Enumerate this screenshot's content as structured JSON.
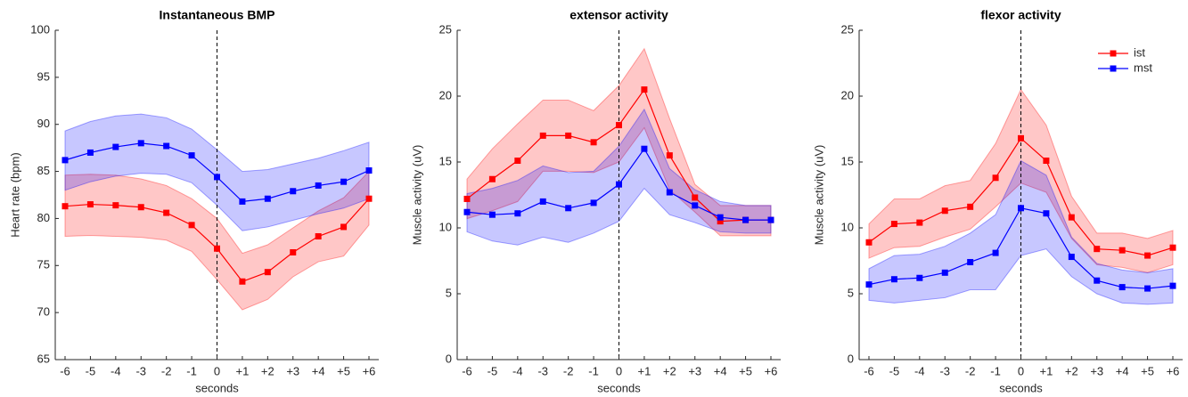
{
  "chart_data": [
    {
      "type": "line",
      "title": "Instantaneous BMP",
      "xlabel": "seconds",
      "ylabel": "Heart rate (bpm)",
      "categories": [
        "-6",
        "-5",
        "-4",
        "-3",
        "-2",
        "-1",
        "0",
        "+1",
        "+2",
        "+3",
        "+4",
        "+5",
        "+6"
      ],
      "vline": "0",
      "ylim": [
        65,
        100
      ],
      "yticks": [
        65,
        70,
        75,
        80,
        85,
        90,
        95,
        100
      ],
      "legend": false,
      "series": [
        {
          "color": "#ff0000",
          "values": [
            81.3,
            81.5,
            81.4,
            81.2,
            80.6,
            79.3,
            76.8,
            73.3,
            74.3,
            76.4,
            78.1,
            79.1,
            82.1
          ],
          "lower": [
            78.1,
            78.2,
            78.1,
            78.0,
            77.7,
            76.5,
            73.5,
            70.3,
            71.4,
            73.8,
            75.4,
            76.0,
            79.3
          ],
          "upper": [
            84.6,
            84.7,
            84.6,
            84.2,
            83.5,
            82.1,
            80.0,
            76.3,
            77.2,
            79.0,
            80.8,
            82.2,
            85.0
          ]
        },
        {
          "color": "#0000ff",
          "values": [
            86.2,
            87.0,
            87.6,
            88.0,
            87.7,
            86.7,
            84.4,
            81.8,
            82.1,
            82.9,
            83.5,
            83.9,
            85.1
          ],
          "lower": [
            83.0,
            83.9,
            84.5,
            84.8,
            84.7,
            83.8,
            81.4,
            78.7,
            79.1,
            79.8,
            80.5,
            81.1,
            82.1
          ],
          "upper": [
            89.3,
            90.3,
            90.9,
            91.1,
            90.7,
            89.5,
            87.3,
            85.0,
            85.2,
            85.8,
            86.4,
            87.2,
            88.1
          ]
        }
      ]
    },
    {
      "type": "line",
      "title": "extensor activity",
      "xlabel": "seconds",
      "ylabel": "Muscle activity (uV)",
      "categories": [
        "-6",
        "-5",
        "-4",
        "-3",
        "-2",
        "-1",
        "0",
        "+1",
        "+2",
        "+3",
        "+4",
        "+5",
        "+6"
      ],
      "vline": "0",
      "ylim": [
        0,
        25
      ],
      "yticks": [
        0,
        5,
        10,
        15,
        20,
        25
      ],
      "legend": false,
      "series": [
        {
          "color": "#ff0000",
          "values": [
            12.2,
            13.7,
            15.1,
            17.0,
            17.0,
            16.5,
            17.8,
            20.5,
            15.5,
            12.3,
            10.5,
            10.6,
            10.6
          ],
          "lower": [
            10.7,
            11.3,
            12.0,
            14.3,
            14.3,
            14.2,
            15.0,
            17.6,
            12.9,
            11.2,
            9.4,
            9.4,
            9.4
          ],
          "upper": [
            13.7,
            16.0,
            17.9,
            19.7,
            19.7,
            18.9,
            20.8,
            23.6,
            18.3,
            13.3,
            11.7,
            11.7,
            11.7
          ]
        },
        {
          "color": "#0000ff",
          "values": [
            11.2,
            11.0,
            11.1,
            12.0,
            11.5,
            11.9,
            13.3,
            16.0,
            12.7,
            11.7,
            10.8,
            10.6,
            10.6
          ],
          "lower": [
            9.7,
            9.0,
            8.7,
            9.3,
            8.9,
            9.6,
            10.5,
            13.0,
            11.0,
            10.4,
            9.7,
            9.6,
            9.6
          ],
          "upper": [
            12.6,
            13.0,
            13.6,
            14.7,
            14.2,
            14.3,
            16.2,
            19.0,
            14.5,
            12.9,
            12.0,
            11.7,
            11.7
          ]
        }
      ]
    },
    {
      "type": "line",
      "title": "flexor activity",
      "xlabel": "seconds",
      "ylabel": "Muscle activity (uV)",
      "categories": [
        "-6",
        "-5",
        "-4",
        "-3",
        "-2",
        "-1",
        "0",
        "+1",
        "+2",
        "+3",
        "+4",
        "+5",
        "+6"
      ],
      "vline": "0",
      "ylim": [
        0,
        25
      ],
      "yticks": [
        0,
        5,
        10,
        15,
        20,
        25
      ],
      "legend": "upper right",
      "series": [
        {
          "name": "ist",
          "color": "#ff0000",
          "values": [
            8.9,
            10.3,
            10.4,
            11.3,
            11.6,
            13.8,
            16.8,
            15.1,
            10.8,
            8.4,
            8.3,
            7.9,
            8.5
          ],
          "lower": [
            7.7,
            8.5,
            8.6,
            9.3,
            9.9,
            11.6,
            13.4,
            12.7,
            9.2,
            7.2,
            7.0,
            6.6,
            7.2
          ],
          "upper": [
            10.3,
            12.2,
            12.2,
            13.2,
            13.6,
            16.4,
            20.5,
            17.8,
            12.4,
            9.6,
            9.6,
            9.2,
            9.8
          ]
        },
        {
          "name": "mst",
          "color": "#0000ff",
          "values": [
            5.7,
            6.1,
            6.2,
            6.6,
            7.4,
            8.1,
            11.5,
            11.1,
            7.8,
            6.0,
            5.5,
            5.4,
            5.6
          ],
          "lower": [
            4.5,
            4.3,
            4.5,
            4.7,
            5.3,
            5.3,
            7.9,
            8.4,
            6.3,
            5.0,
            4.3,
            4.2,
            4.3
          ],
          "upper": [
            6.9,
            7.9,
            8.0,
            8.6,
            9.6,
            11.0,
            15.1,
            14.0,
            9.3,
            7.3,
            6.8,
            6.6,
            6.9
          ]
        }
      ]
    }
  ]
}
